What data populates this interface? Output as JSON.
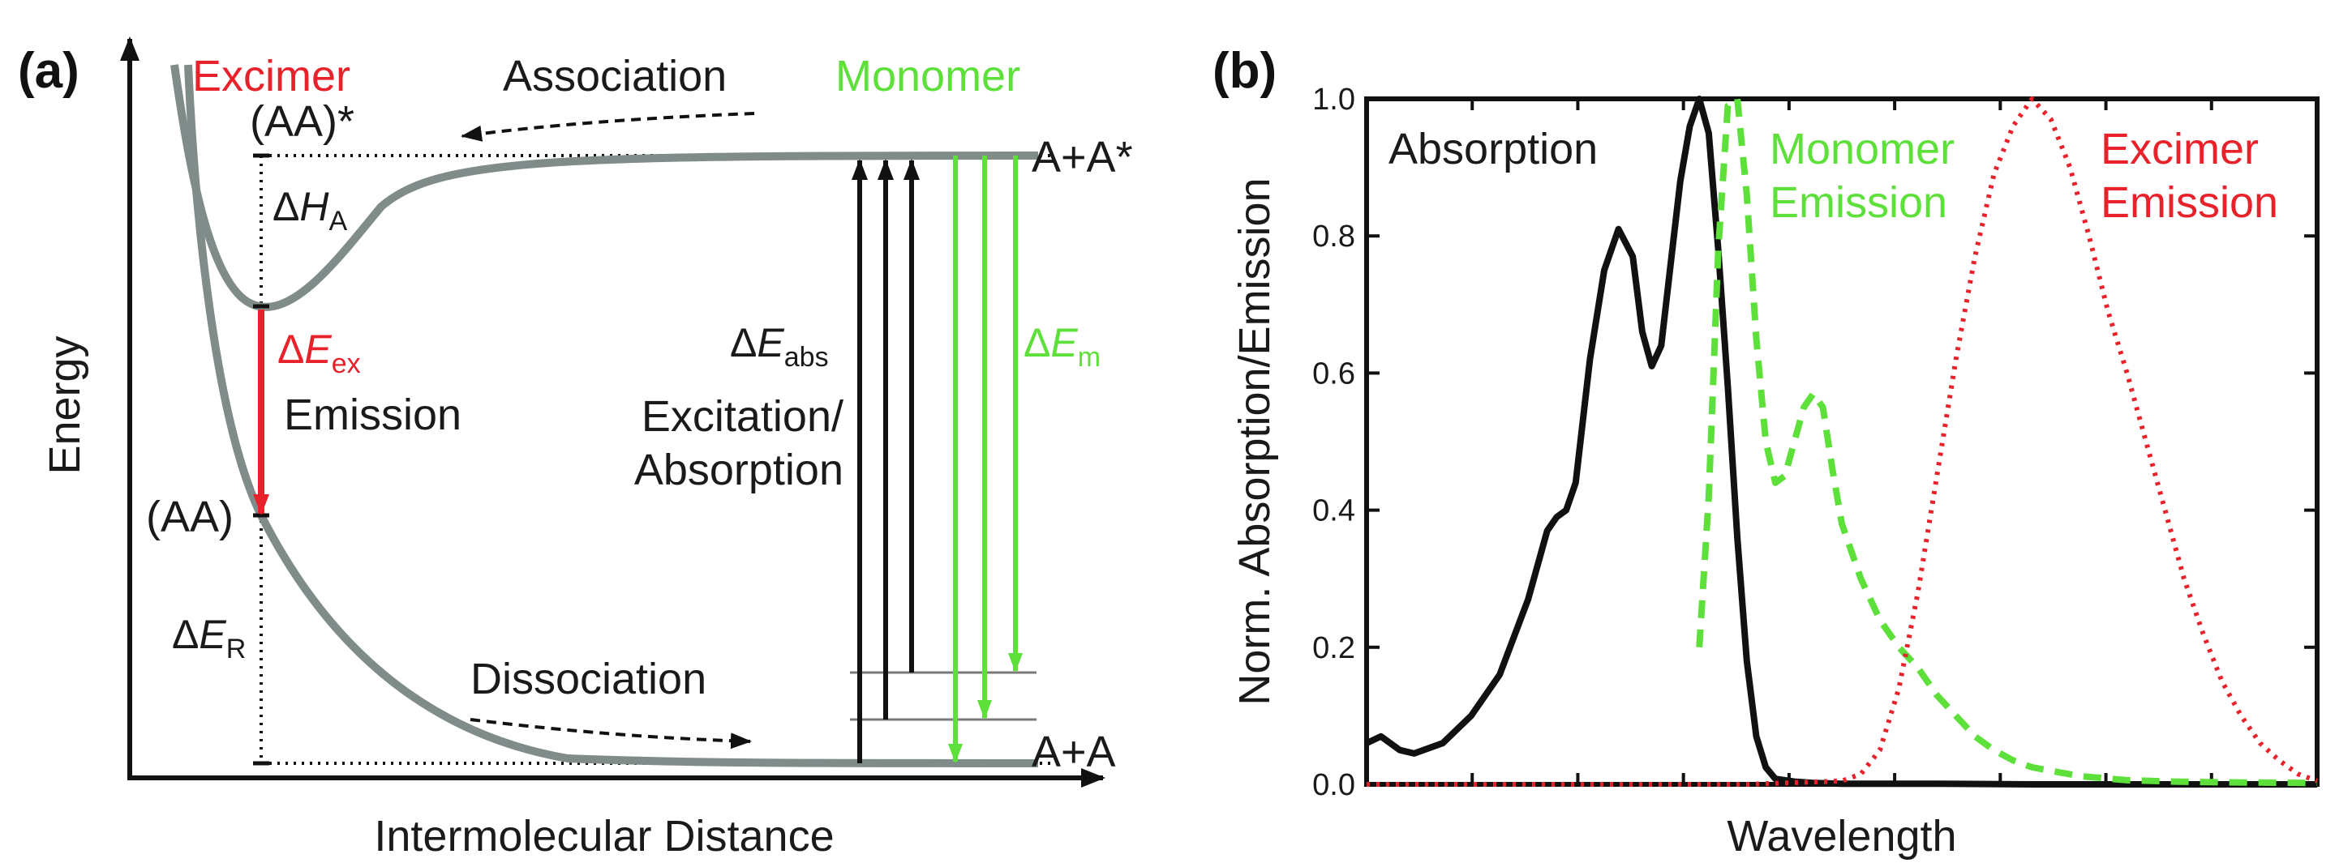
{
  "colors": {
    "excimer": "#e8222a",
    "monomer": "#5ee03a",
    "curve": "#7f8c8a",
    "black": "#111111"
  },
  "panel_a": {
    "label": "(a)",
    "y_axis_label": "Energy",
    "x_axis_label": "Intermolecular Distance",
    "excimer_title": "Excimer",
    "monomer_title": "Monomer",
    "association": "Association",
    "dissociation": "Dissociation",
    "aa_star": "(AA)*",
    "aa": "(AA)",
    "a_plus_a_star": "A+A*",
    "a_plus_a": "A+A",
    "delta": "Δ",
    "dH_main": "H",
    "dH_sub": "A",
    "dEex_main": "E",
    "dEex_sub": "ex",
    "emission": "Emission",
    "dER_main": "E",
    "dER_sub": "R",
    "dEabs_main": "E",
    "dEabs_sub": "abs",
    "excitation_line1": "Excitation/",
    "excitation_line2": "Absorption",
    "dEm_main": "E",
    "dEm_sub": "m"
  },
  "panel_b": {
    "label": "(b)",
    "absorption_label": "Absorption",
    "monomer_label_1": "Monomer",
    "monomer_label_2": "Emission",
    "excimer_label_1": "Excimer",
    "excimer_label_2": "Emission"
  },
  "chart_data": {
    "type": "line",
    "title": "",
    "xlabel": "Wavelength",
    "ylabel": "Norm. Absorption/Emission",
    "xlim": [
      0,
      100
    ],
    "ylim": [
      0,
      1.0
    ],
    "yticks": [
      "0.0",
      "0.2",
      "0.4",
      "0.6",
      "0.8",
      "1.0"
    ],
    "x_tick_labels_shown": false,
    "series": [
      {
        "name": "Absorption",
        "style": "solid",
        "color": "#111111",
        "x": [
          0,
          1.5,
          3.5,
          5,
          8,
          11,
          14,
          17,
          19,
          20,
          21,
          22,
          23.5,
          25,
          26.5,
          28,
          29,
          30,
          31,
          32,
          33,
          34,
          35,
          36,
          37,
          38,
          39,
          40,
          41,
          42,
          43,
          45,
          47,
          50,
          55,
          60,
          70,
          100
        ],
        "y": [
          0.06,
          0.07,
          0.05,
          0.045,
          0.06,
          0.1,
          0.16,
          0.27,
          0.37,
          0.39,
          0.4,
          0.44,
          0.62,
          0.75,
          0.81,
          0.77,
          0.66,
          0.61,
          0.64,
          0.76,
          0.88,
          0.96,
          1.0,
          0.95,
          0.78,
          0.58,
          0.36,
          0.18,
          0.07,
          0.025,
          0.008,
          0.004,
          0.002,
          0.001,
          0.001,
          0.001,
          0.0,
          0.0
        ]
      },
      {
        "name": "Monomer Emission",
        "style": "dashed",
        "color": "#5ee03a",
        "x": [
          35,
          36,
          37,
          38,
          39,
          40,
          41,
          42,
          43,
          44,
          45,
          46,
          47,
          48,
          49,
          50,
          52,
          54,
          56,
          58,
          60,
          62,
          64,
          66,
          68,
          70,
          75,
          80,
          85,
          90,
          100
        ],
        "y": [
          0.2,
          0.42,
          0.78,
          0.99,
          1.0,
          0.86,
          0.65,
          0.5,
          0.44,
          0.45,
          0.5,
          0.55,
          0.57,
          0.55,
          0.46,
          0.38,
          0.3,
          0.24,
          0.2,
          0.17,
          0.13,
          0.1,
          0.07,
          0.05,
          0.035,
          0.025,
          0.012,
          0.006,
          0.004,
          0.003,
          0.002
        ]
      },
      {
        "name": "Excimer Emission",
        "style": "dotted",
        "color": "#e8222a",
        "x": [
          0,
          40,
          50,
          52,
          54,
          56,
          58,
          60,
          62,
          64,
          66,
          68,
          70,
          72,
          74,
          76,
          78,
          80,
          82,
          84,
          86,
          88,
          90,
          92,
          94,
          96,
          98,
          100
        ],
        "y": [
          0.0,
          0.0,
          0.005,
          0.015,
          0.05,
          0.14,
          0.28,
          0.45,
          0.62,
          0.77,
          0.89,
          0.96,
          1.0,
          0.97,
          0.9,
          0.8,
          0.69,
          0.6,
          0.5,
          0.4,
          0.3,
          0.22,
          0.15,
          0.1,
          0.06,
          0.035,
          0.015,
          0.005
        ]
      }
    ]
  }
}
